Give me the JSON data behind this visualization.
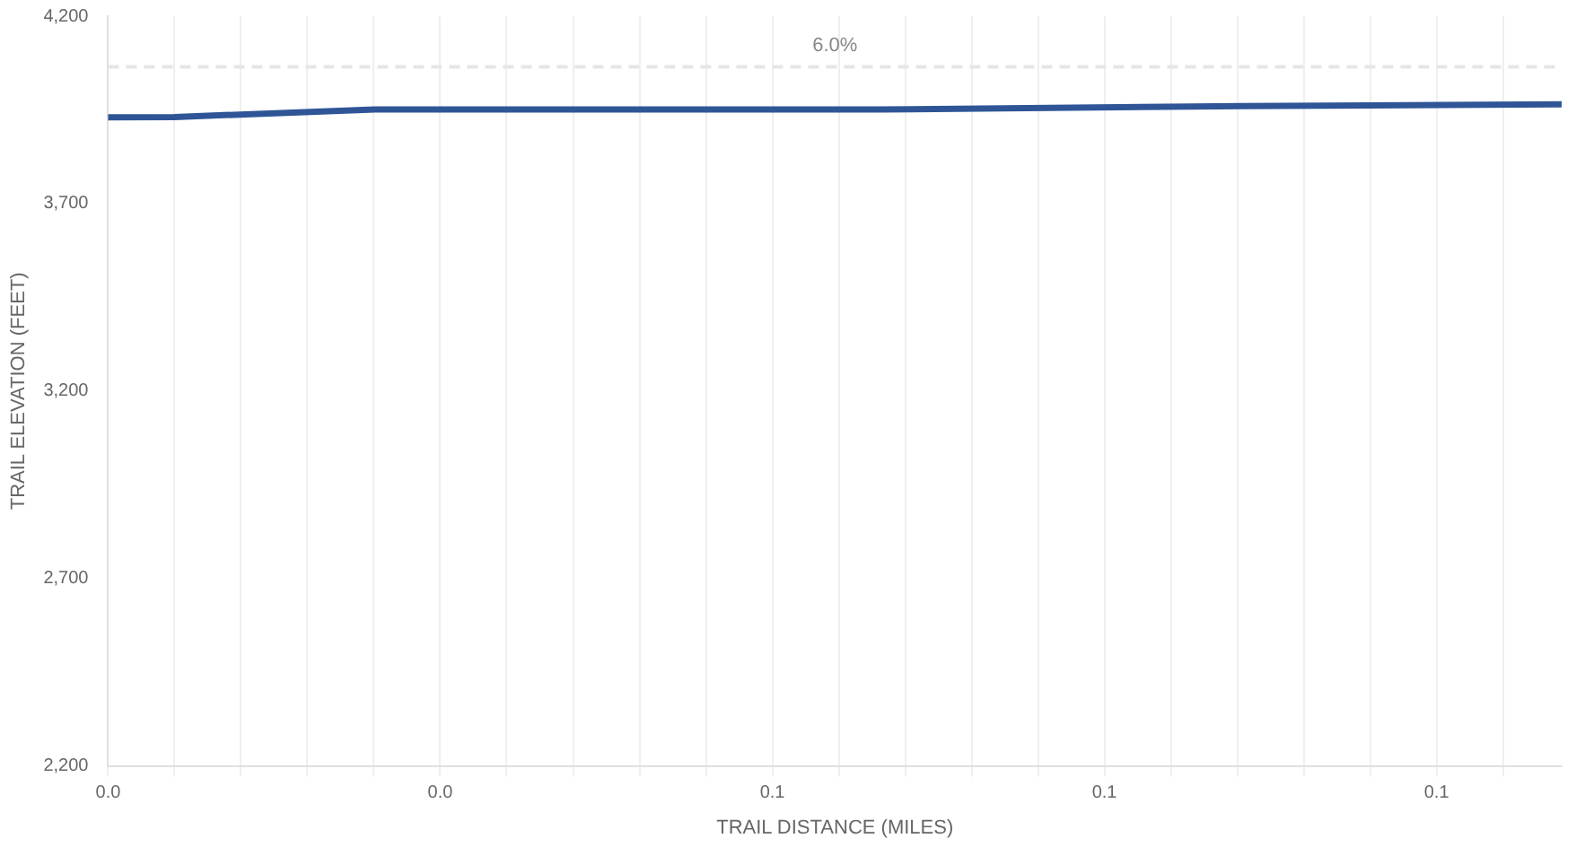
{
  "chart_data": {
    "type": "line",
    "xlabel": "TRAIL DISTANCE (MILES)",
    "ylabel": "TRAIL ELEVATION (FEET)",
    "x": [
      0,
      0.006,
      0.0241,
      0.0698,
      0.1024,
      0.1313
    ],
    "series": [
      {
        "color": "#2f5597",
        "values": [
          3930,
          3931,
          3951,
          3951,
          3960,
          3965
        ]
      }
    ],
    "xlim": [
      0,
      0.1313
    ],
    "xticks": [
      {
        "value": 0,
        "label": "0.0"
      },
      {
        "value": 0.006,
        "label": null
      },
      {
        "value": 0.012,
        "label": null
      },
      {
        "value": 0.018,
        "label": null
      },
      {
        "value": 0.024,
        "label": null
      },
      {
        "value": 0.03,
        "label": "0.0"
      },
      {
        "value": 0.036,
        "label": null
      },
      {
        "value": 0.042,
        "label": null
      },
      {
        "value": 0.048,
        "label": null
      },
      {
        "value": 0.054,
        "label": null
      },
      {
        "value": 0.06,
        "label": "0.1"
      },
      {
        "value": 0.066,
        "label": null
      },
      {
        "value": 0.072,
        "label": null
      },
      {
        "value": 0.078,
        "label": null
      },
      {
        "value": 0.084,
        "label": null
      },
      {
        "value": 0.09,
        "label": "0.1"
      },
      {
        "value": 0.096,
        "label": null
      },
      {
        "value": 0.102,
        "label": null
      },
      {
        "value": 0.108,
        "label": null
      },
      {
        "value": 0.114,
        "label": null
      },
      {
        "value": 0.12,
        "label": "0.1"
      },
      {
        "value": 0.126,
        "label": null
      }
    ],
    "ylim": [
      2200,
      4200
    ],
    "yticks": [
      {
        "value": 2200,
        "label": "2,200"
      },
      {
        "value": 2700,
        "label": "2,700"
      },
      {
        "value": 3200,
        "label": "3,200"
      },
      {
        "value": 3700,
        "label": "3,700"
      },
      {
        "value": 4200,
        "label": "4,200"
      }
    ],
    "ref_lines": [
      {
        "axis": "y",
        "value": 4065,
        "color": "#e6e6e6",
        "line_style": "dashed"
      }
    ],
    "annotations": [
      "6.0%"
    ],
    "grid": "x",
    "marker": "none",
    "line_style": "solid",
    "legend": false
  }
}
